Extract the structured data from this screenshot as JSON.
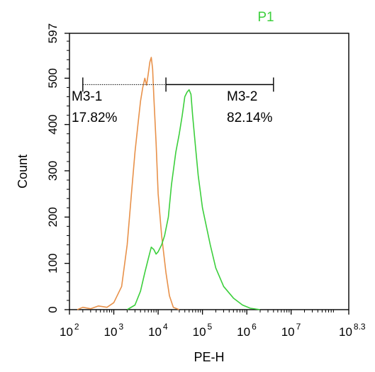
{
  "chart_data": {
    "type": "area",
    "title": "P1",
    "title_color": "#3ccf3c",
    "xlabel": "PE-H",
    "ylabel": "Count",
    "x_scale": "log",
    "xlim": [
      100,
      199526231
    ],
    "ylim": [
      0,
      597
    ],
    "x_ticks": [
      {
        "value": 100,
        "base": "10",
        "exp": "2"
      },
      {
        "value": 1000,
        "base": "10",
        "exp": "3"
      },
      {
        "value": 10000,
        "base": "10",
        "exp": "4"
      },
      {
        "value": 100000,
        "base": "10",
        "exp": "5"
      },
      {
        "value": 1000000,
        "base": "10",
        "exp": "6"
      },
      {
        "value": 10000000,
        "base": "10",
        "exp": "7"
      },
      {
        "value": 199526231,
        "base": "10",
        "exp": "8.3"
      }
    ],
    "y_ticks": [
      0,
      100,
      200,
      300,
      400,
      500,
      597
    ],
    "grid": false,
    "series": [
      {
        "color": "#e8914a",
        "x": [
          150,
          200,
          300,
          450,
          700,
          1000,
          1500,
          2000,
          2500,
          3000,
          3500,
          4000,
          4500,
          5000,
          5500,
          6000,
          6500,
          7000,
          7500,
          8000,
          9000,
          10000,
          12000,
          15000,
          18000,
          22000,
          30000
        ],
        "y": [
          0,
          5,
          2,
          8,
          5,
          15,
          50,
          140,
          250,
          340,
          400,
          450,
          480,
          500,
          485,
          510,
          535,
          545,
          520,
          460,
          360,
          250,
          160,
          80,
          30,
          5,
          0
        ]
      },
      {
        "color": "#3ccf3c",
        "x": [
          2000,
          3000,
          4000,
          5000,
          6000,
          7000,
          8000,
          9000,
          10000,
          12000,
          14000,
          17000,
          20000,
          25000,
          30000,
          35000,
          40000,
          45000,
          50000,
          55000,
          60000,
          70000,
          80000,
          100000,
          150000,
          200000,
          300000,
          500000,
          800000,
          1200000,
          2000000
        ],
        "y": [
          0,
          10,
          40,
          80,
          110,
          135,
          130,
          120,
          125,
          140,
          160,
          200,
          270,
          340,
          380,
          420,
          460,
          470,
          475,
          465,
          420,
          350,
          290,
          220,
          140,
          90,
          50,
          25,
          10,
          3,
          0
        ]
      }
    ],
    "markers": [
      {
        "label": "M3-1",
        "percent": "17.82%",
        "x_range": [
          200,
          15000
        ]
      },
      {
        "label": "M3-2",
        "percent": "82.14%",
        "x_range": [
          15000,
          4000000
        ]
      }
    ],
    "marker_y": 500
  }
}
